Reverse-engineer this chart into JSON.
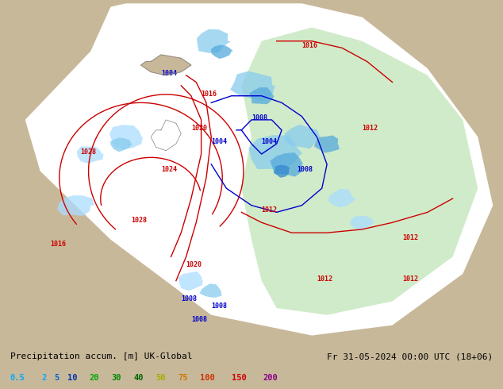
{
  "title_left": "Precipitation accum. [m] UK-Global",
  "title_right": "Fr 31-05-2024 00:00 UTC (18+06)",
  "legend_values": [
    "0.5",
    "2",
    "5",
    "10",
    "20",
    "30",
    "40",
    "50",
    "75",
    "100",
    "150",
    "200"
  ],
  "legend_colors": [
    "#87CEEB",
    "#00BFFF",
    "#0080FF",
    "#0000CD",
    "#00FF00",
    "#00CC00",
    "#009900",
    "#FFFF00",
    "#FFA500",
    "#FF4500",
    "#FF0000",
    "#800080"
  ],
  "precip_colormap_levels": [
    0.5,
    2,
    5,
    10,
    20,
    30,
    40,
    50,
    75,
    100,
    150,
    200
  ],
  "precip_colors": [
    "#b3ecff",
    "#7dd4f0",
    "#55aadd",
    "#3388cc",
    "#aaffaa",
    "#77dd77",
    "#44bb44",
    "#ffff66",
    "#ffbb33",
    "#ff6600",
    "#ff2200",
    "#aa00aa"
  ],
  "background_land_color": "#c8b89a",
  "background_sea_color": "#a0b8d0",
  "map_white": "#ffffff",
  "map_green": "#c8e6c8",
  "isobar_color_low": "#0000cc",
  "isobar_color_high": "#cc0000",
  "isobar_fontsize": 7,
  "text_color_left": "#000000",
  "text_color_right": "#000000",
  "bottom_bar_color": "#e8e8e8",
  "figsize": [
    6.34,
    4.9
  ],
  "dpi": 100
}
